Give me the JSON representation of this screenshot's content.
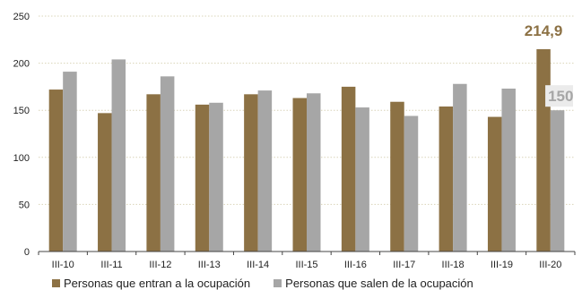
{
  "chart_data": {
    "type": "bar",
    "categories": [
      "III-10",
      "III-11",
      "III-12",
      "III-13",
      "III-14",
      "III-15",
      "III-16",
      "III-17",
      "III-18",
      "III-19",
      "III-20"
    ],
    "series": [
      {
        "name": "Personas que entran a la ocupación",
        "color": "#8c7144",
        "values": [
          172,
          147,
          167,
          156,
          167,
          163,
          175,
          159,
          154,
          143,
          214.9
        ]
      },
      {
        "name": "Personas que salen de la ocupación",
        "color": "#a6a6a6",
        "values": [
          191,
          204,
          186,
          158,
          171,
          168,
          153,
          144,
          178,
          173,
          150.0
        ]
      }
    ],
    "yticks": [
      0,
      50,
      100,
      150,
      200,
      250
    ],
    "ylim": [
      0,
      250
    ],
    "grid": true,
    "legend_position": "bottom",
    "annotations": [
      {
        "category": "III-20",
        "series": 0,
        "text": "214,9",
        "color": "#8c7144"
      },
      {
        "category": "III-20",
        "series": 1,
        "text": "150,0",
        "color": "#a6a6a6"
      }
    ]
  }
}
